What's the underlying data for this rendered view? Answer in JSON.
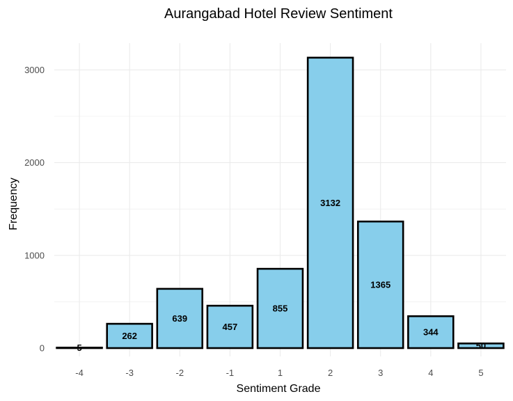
{
  "chart_data": {
    "type": "bar",
    "title": "Aurangabad Hotel Review Sentiment",
    "xlabel": "Sentiment Grade",
    "ylabel": "Frequency",
    "categories": [
      "-4",
      "-3",
      "-2",
      "-1",
      "1",
      "2",
      "3",
      "4",
      "5"
    ],
    "values": [
      5,
      262,
      639,
      457,
      855,
      3132,
      1365,
      344,
      50
    ],
    "data_labels": [
      "5",
      "262",
      "639",
      "457",
      "855",
      "3132",
      "1365",
      "344",
      "50"
    ],
    "y_ticks": [
      0,
      1000,
      2000,
      3000
    ],
    "y_tick_labels": [
      "0",
      "1000",
      "2000",
      "3000"
    ],
    "ylim": [
      0,
      3290
    ],
    "grid": true,
    "legend": "none",
    "colors": {
      "bar_fill": "#87CEEB",
      "bar_stroke": "#000000",
      "grid": "#ebebeb"
    }
  }
}
